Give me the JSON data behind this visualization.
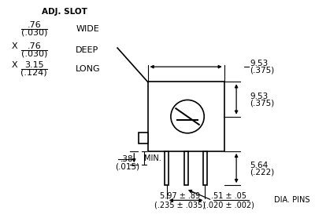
{
  "title": "",
  "bg_color": "#ffffff",
  "adj_slot_label": "ADJ. SLOT",
  "wide_label": "WIDE",
  "deep_label": "DEEP",
  "long_label": "LONG",
  "min_label": "MIN.",
  "dia_pins_label": "DIA. PINS",
  "val_wide_top": ".76",
  "val_wide_bot": "(.030)",
  "val_deep_top": ".76",
  "val_deep_bot": "(.030)",
  "val_long_top": "3.15",
  "val_long_bot": "(.124)",
  "val_min_top": ".38",
  "val_min_bot": "(.015)",
  "val_top_dim_top": "9.53",
  "val_top_dim_bot": "(.375)",
  "val_mid_dim_top": "9.53",
  "val_mid_dim_bot": "(.375)",
  "val_pin_h_top": "5.64",
  "val_pin_h_bot": "(.222)",
  "val_base_top": "5.97 ± .89",
  "val_base_bot": "(.235 ± .035)",
  "val_pin_d_top": ".51 ± .05",
  "val_pin_d_bot": "(.020 ± .002)",
  "line_color": "#000000",
  "text_color": "#000000"
}
